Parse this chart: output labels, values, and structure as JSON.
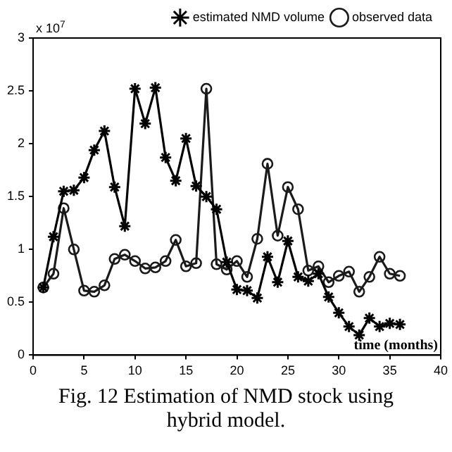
{
  "chart_data": {
    "type": "line",
    "title": "Fig. 12 Estimation of NMD stock using hybrid model.",
    "xlabel": "time (months)",
    "annotations": [
      "x 10$^{7}$"
    ],
    "x": [
      1,
      2,
      3,
      4,
      5,
      6,
      7,
      8,
      9,
      10,
      11,
      12,
      13,
      14,
      15,
      16,
      17,
      18,
      19,
      20,
      21,
      22,
      23,
      24,
      25,
      26,
      27,
      28,
      29,
      30,
      31,
      32,
      33,
      34,
      35,
      36
    ],
    "series": [
      {
        "name": "estimated NMD volume",
        "color": "#000000",
        "marker": "cross",
        "values": [
          0.64,
          1.12,
          1.55,
          1.56,
          1.68,
          1.94,
          2.12,
          1.59,
          1.22,
          2.52,
          2.19,
          2.53,
          1.87,
          1.65,
          2.05,
          1.6,
          1.5,
          1.38,
          0.88,
          0.62,
          0.61,
          0.54,
          0.93,
          0.69,
          1.08,
          0.74,
          0.7,
          0.77,
          0.55,
          0.4,
          0.27,
          0.19,
          0.35,
          0.27,
          0.3,
          0.29
        ]
      },
      {
        "name": "observed data",
        "color": "#1a1a1a",
        "marker": "circle",
        "values": [
          0.64,
          0.77,
          1.39,
          1.0,
          0.61,
          0.6,
          0.66,
          0.91,
          0.95,
          0.89,
          0.82,
          0.83,
          0.89,
          1.09,
          0.84,
          0.87,
          2.52,
          0.86,
          0.81,
          0.89,
          0.74,
          1.1,
          1.81,
          1.13,
          1.59,
          1.38,
          0.8,
          0.84,
          0.69,
          0.75,
          0.79,
          0.6,
          0.74,
          0.93,
          0.77,
          0.75
        ]
      }
    ],
    "xlim": [
      0,
      40
    ],
    "xticks": [
      0,
      5,
      10,
      15,
      20,
      25,
      30,
      35,
      40
    ],
    "ylim": [
      0,
      3
    ],
    "yticks": [
      0,
      0.5,
      1,
      1.5,
      2,
      2.5,
      3
    ],
    "grid": false,
    "legend": "top right"
  }
}
